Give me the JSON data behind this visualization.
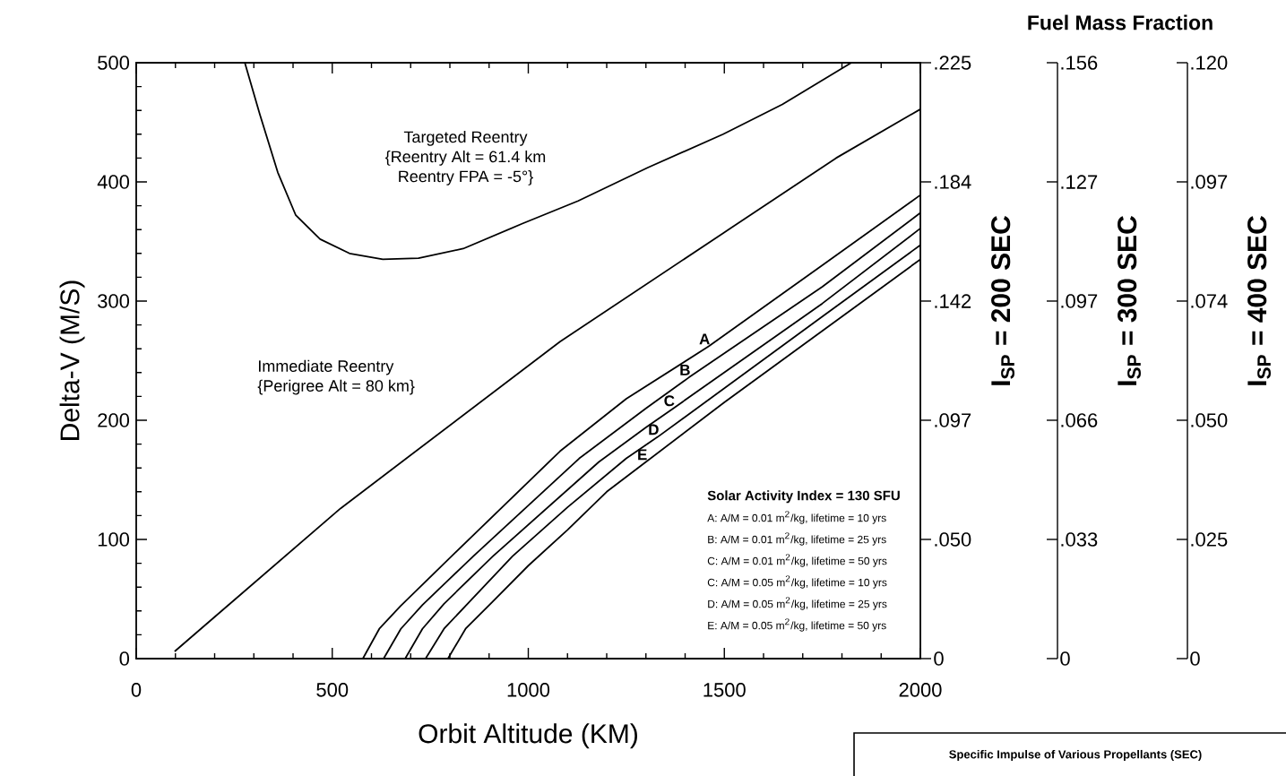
{
  "chart_data": [
    {
      "type": "line",
      "xlabel": "Orbit Altitude (KM)",
      "ylabel": "Delta-V  (M/S)",
      "xlim": [
        0,
        2000
      ],
      "xticks": [
        0,
        500,
        1000,
        1500,
        2000
      ],
      "ylim": [
        0,
        500
      ],
      "yticks": [
        0,
        100,
        200,
        300,
        400,
        500
      ],
      "series": [
        {
          "color": "#000000",
          "x": [
            277,
            315,
            361,
            407,
            469,
            544,
            629,
            720,
            834,
            985,
            1127,
            1305,
            1497,
            1648,
            1824
          ],
          "values": [
            500,
            457,
            408,
            372,
            352,
            340,
            335,
            336,
            344,
            365,
            384,
            412,
            440,
            465,
            500
          ]
        },
        {
          "color": "#000000",
          "x": [
            98,
            521,
            1081,
            1497,
            1785,
            2000
          ],
          "values": [
            6,
            126,
            266,
            357,
            420,
            461
          ]
        },
        {
          "name": "A",
          "color": "#000000",
          "x": [
            578,
            620,
            674,
            811,
            1081,
            1250,
            1460,
            1750,
            2000
          ],
          "values": [
            0,
            25,
            44,
            88,
            174,
            218,
            262,
            330,
            389
          ]
        },
        {
          "name": "B",
          "color": "#000000",
          "x": [
            631,
            675,
            730,
            860,
            1130,
            1300,
            1410,
            1750,
            2000
          ],
          "values": [
            0,
            25,
            45,
            86,
            168,
            210,
            236,
            312,
            374
          ]
        },
        {
          "name": "C",
          "color": "#000000",
          "x": [
            686,
            730,
            785,
            910,
            1180,
            1300,
            1370,
            1750,
            2000
          ],
          "values": [
            0,
            25,
            46,
            86,
            165,
            194,
            210,
            298,
            361
          ]
        },
        {
          "name": "D",
          "color": "#000000",
          "x": [
            738,
            785,
            845,
            960,
            1100,
            1250,
            1330,
            1750,
            2000
          ],
          "values": [
            0,
            25,
            46,
            86,
            127,
            168,
            186,
            287,
            347
          ]
        },
        {
          "name": "E",
          "color": "#000000",
          "x": [
            795,
            840,
            907,
            1000,
            1100,
            1200,
            1300,
            1500,
            1750,
            2000
          ],
          "values": [
            0,
            25,
            47,
            78,
            108,
            140,
            165,
            215,
            275,
            335
          ]
        }
      ],
      "annotations": [
        "Targeted Reentry",
        "{Reentry Alt = 61.4 km",
        "Reentry FPA = -5°}",
        "Immediate Reentry",
        "{Perigree Alt = 80 km}",
        "Solar Activity Index = 130 SFU",
        "A:  A/M = 0.01 m$^{2}$/kg, lifetime = 10 yrs",
        "B:  A/M = 0.01 m$^{2}$/kg, lifetime = 25 yrs",
        "C:  A/M = 0.01 m$^{2}$/kg, lifetime = 50 yrs",
        "C:  A/M = 0.05 m$^{2}$/kg, lifetime = 10 yrs",
        "D:  A/M = 0.05 m$^{2}$/kg, lifetime = 25 yrs",
        "E:  A/M = 0.05 m$^{2}$/kg, lifetime = 50 yrs",
        "Specific Impulse of Various Propellants (SEC)"
      ]
    },
    {
      "type": "other",
      "ylabel": "I$_{SP}$ = 200 SEC",
      "annotations": [
        "0",
        ".050",
        ".097",
        ".142",
        ".184",
        ".225"
      ]
    },
    {
      "type": "other",
      "title": "Fuel Mass Fraction",
      "ylabel": "I$_{SP}$ = 300 SEC",
      "annotations": [
        "0",
        ".033",
        ".066",
        ".097",
        ".127",
        ".156"
      ]
    },
    {
      "type": "other",
      "ylabel": "I$_{SP}$ = 400 SEC",
      "annotations": [
        "0",
        ".025",
        ".050",
        ".074",
        ".097",
        ".120"
      ]
    }
  ]
}
